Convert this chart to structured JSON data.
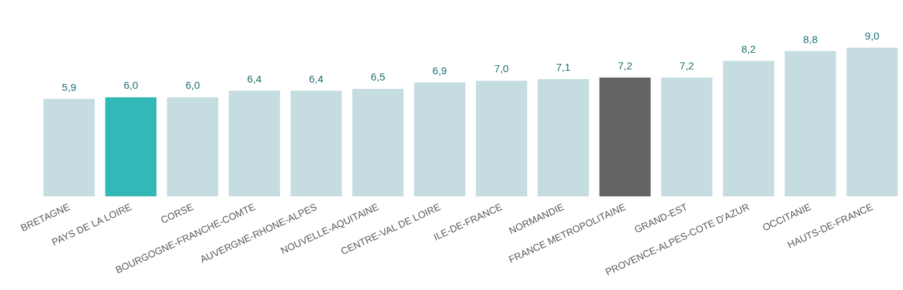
{
  "chart_data": {
    "type": "bar",
    "categories": [
      "BRETAGNE",
      "PAYS DE LA LOIRE",
      "CORSE",
      "BOURGOGNE-FRANCHE-COMTE",
      "AUVERGNE-RHONE-ALPES",
      "NOUVELLE-AQUITAINE",
      "CENTRE-VAL DE LOIRE",
      "ILE-DE-FRANCE",
      "NORMANDIE",
      "FRANCE METROPOLITAINE",
      "GRAND-EST",
      "PROVENCE-ALPES-COTE D'AZUR",
      "OCCITANIE",
      "HAUTS-DE-FRANCE"
    ],
    "values": [
      5.9,
      6.0,
      6.0,
      6.4,
      6.4,
      6.5,
      6.9,
      7.0,
      7.1,
      7.2,
      7.2,
      8.2,
      8.8,
      9.0
    ],
    "value_labels": [
      "5,9",
      "6,0",
      "6,0",
      "6,4",
      "6,4",
      "6,5",
      "6,9",
      "7,0",
      "7,1",
      "7,2",
      "7,2",
      "8,2",
      "8,8",
      "9,0"
    ],
    "colors": [
      "#c5dce1",
      "#33b8b8",
      "#c5dce1",
      "#c5dce1",
      "#c5dce1",
      "#c5dce1",
      "#c5dce1",
      "#c5dce1",
      "#c5dce1",
      "#646464",
      "#c5dce1",
      "#c5dce1",
      "#c5dce1",
      "#c5dce1"
    ]
  }
}
